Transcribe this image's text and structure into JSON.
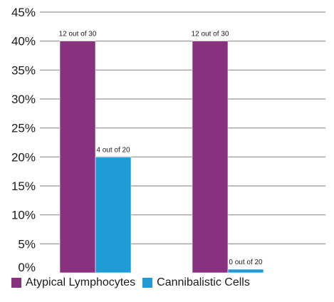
{
  "chart_data": {
    "type": "bar",
    "categories": [
      "",
      ""
    ],
    "series": [
      {
        "name": "Atypical Lymphocytes",
        "color": "#87317f",
        "values": [
          40,
          40
        ],
        "labels": [
          "12 out of 30",
          "12 out of 30"
        ]
      },
      {
        "name": "Cannibalistic Cells",
        "color": "#1f9bd6",
        "values": [
          20,
          0
        ],
        "labels": [
          "4 out of 20",
          "0 out of 20"
        ]
      }
    ],
    "yticks": [
      "0%",
      "5%",
      "10%",
      "15%",
      "20%",
      "25%",
      "30%",
      "35%",
      "40%",
      "45%"
    ],
    "ylim": [
      0,
      45
    ],
    "grid": true,
    "legend_position": "bottom-left"
  }
}
